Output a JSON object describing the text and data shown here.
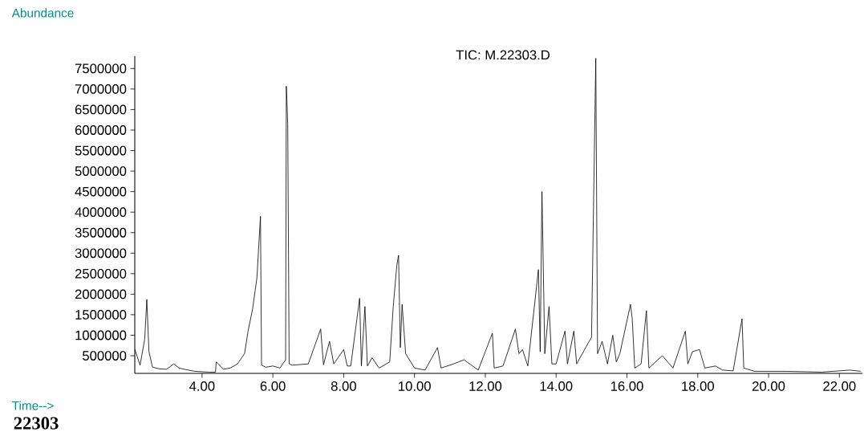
{
  "chart_data": {
    "type": "line",
    "title": "TIC: M.22303.D",
    "xlabel": "Time-->",
    "ylabel": "Abundance",
    "annotations": [
      "22303"
    ],
    "x": [
      2.1,
      2.25,
      2.38,
      2.44,
      2.5,
      2.6,
      2.8,
      3.0,
      3.2,
      3.35,
      3.5,
      3.8,
      4.2,
      4.38,
      4.4,
      4.6,
      4.8,
      5.0,
      5.2,
      5.3,
      5.43,
      5.55,
      5.65,
      5.68,
      5.8,
      6.0,
      6.2,
      6.36,
      6.38,
      6.42,
      6.46,
      6.55,
      7.0,
      7.35,
      7.43,
      7.6,
      7.72,
      8.0,
      8.1,
      8.2,
      8.45,
      8.5,
      8.6,
      8.67,
      8.8,
      9.0,
      9.3,
      9.4,
      9.5,
      9.55,
      9.6,
      9.65,
      9.75,
      10.0,
      10.3,
      10.65,
      10.75,
      11.1,
      11.4,
      11.8,
      12.2,
      12.25,
      12.5,
      12.85,
      12.95,
      13.05,
      13.2,
      13.5,
      13.55,
      13.6,
      13.68,
      13.8,
      13.88,
      14.0,
      14.25,
      14.32,
      14.5,
      14.58,
      14.9,
      15.0,
      15.12,
      15.17,
      15.3,
      15.45,
      15.6,
      15.7,
      15.8,
      16.1,
      16.15,
      16.22,
      16.4,
      16.55,
      16.62,
      17.0,
      17.3,
      17.65,
      17.72,
      17.85,
      18.05,
      18.2,
      18.5,
      18.7,
      19.0,
      19.25,
      19.3,
      19.6,
      20.5,
      21.5,
      22.3,
      22.6
    ],
    "values": [
      660000,
      270000,
      900000,
      1870000,
      600000,
      220000,
      180000,
      170000,
      300000,
      200000,
      170000,
      120000,
      100000,
      100000,
      350000,
      170000,
      200000,
      300000,
      550000,
      1100000,
      1650000,
      2400000,
      3900000,
      270000,
      220000,
      250000,
      200000,
      400000,
      7070000,
      6150000,
      300000,
      270000,
      300000,
      1150000,
      280000,
      850000,
      300000,
      650000,
      250000,
      250000,
      1900000,
      250000,
      1700000,
      250000,
      450000,
      200000,
      350000,
      1700000,
      2700000,
      2950000,
      700000,
      1750000,
      550000,
      200000,
      150000,
      700000,
      200000,
      300000,
      400000,
      150000,
      1050000,
      200000,
      250000,
      1150000,
      550000,
      650000,
      250000,
      2600000,
      600000,
      4500000,
      550000,
      1700000,
      300000,
      300000,
      1100000,
      300000,
      1100000,
      300000,
      800000,
      950000,
      7750000,
      550000,
      850000,
      300000,
      1000000,
      350000,
      550000,
      1750000,
      1400000,
      200000,
      300000,
      1600000,
      200000,
      500000,
      200000,
      1100000,
      300000,
      600000,
      650000,
      200000,
      250000,
      150000,
      130000,
      1400000,
      200000,
      120000,
      120000,
      100000,
      150000,
      120000
    ],
    "color": "#000000",
    "marker": "none",
    "grid": false,
    "xlim": [
      2.1,
      22.65
    ],
    "ylim": [
      70000,
      7800000
    ],
    "xticks": [
      {
        "value": 4,
        "label": "4.00"
      },
      {
        "value": 6,
        "label": "6.00"
      },
      {
        "value": 8,
        "label": "8.00"
      },
      {
        "value": 10,
        "label": "10.00"
      },
      {
        "value": 12,
        "label": "12.00"
      },
      {
        "value": 14,
        "label": "14.00"
      },
      {
        "value": 16,
        "label": "16.00"
      },
      {
        "value": 18,
        "label": "18.00"
      },
      {
        "value": 20,
        "label": "20.00"
      },
      {
        "value": 22,
        "label": "22.00"
      }
    ],
    "yticks": [
      500000,
      1000000,
      1500000,
      2000000,
      2500000,
      3000000,
      3500000,
      4000000,
      4500000,
      5000000,
      5500000,
      6000000,
      6500000,
      7000000,
      7500000
    ]
  }
}
